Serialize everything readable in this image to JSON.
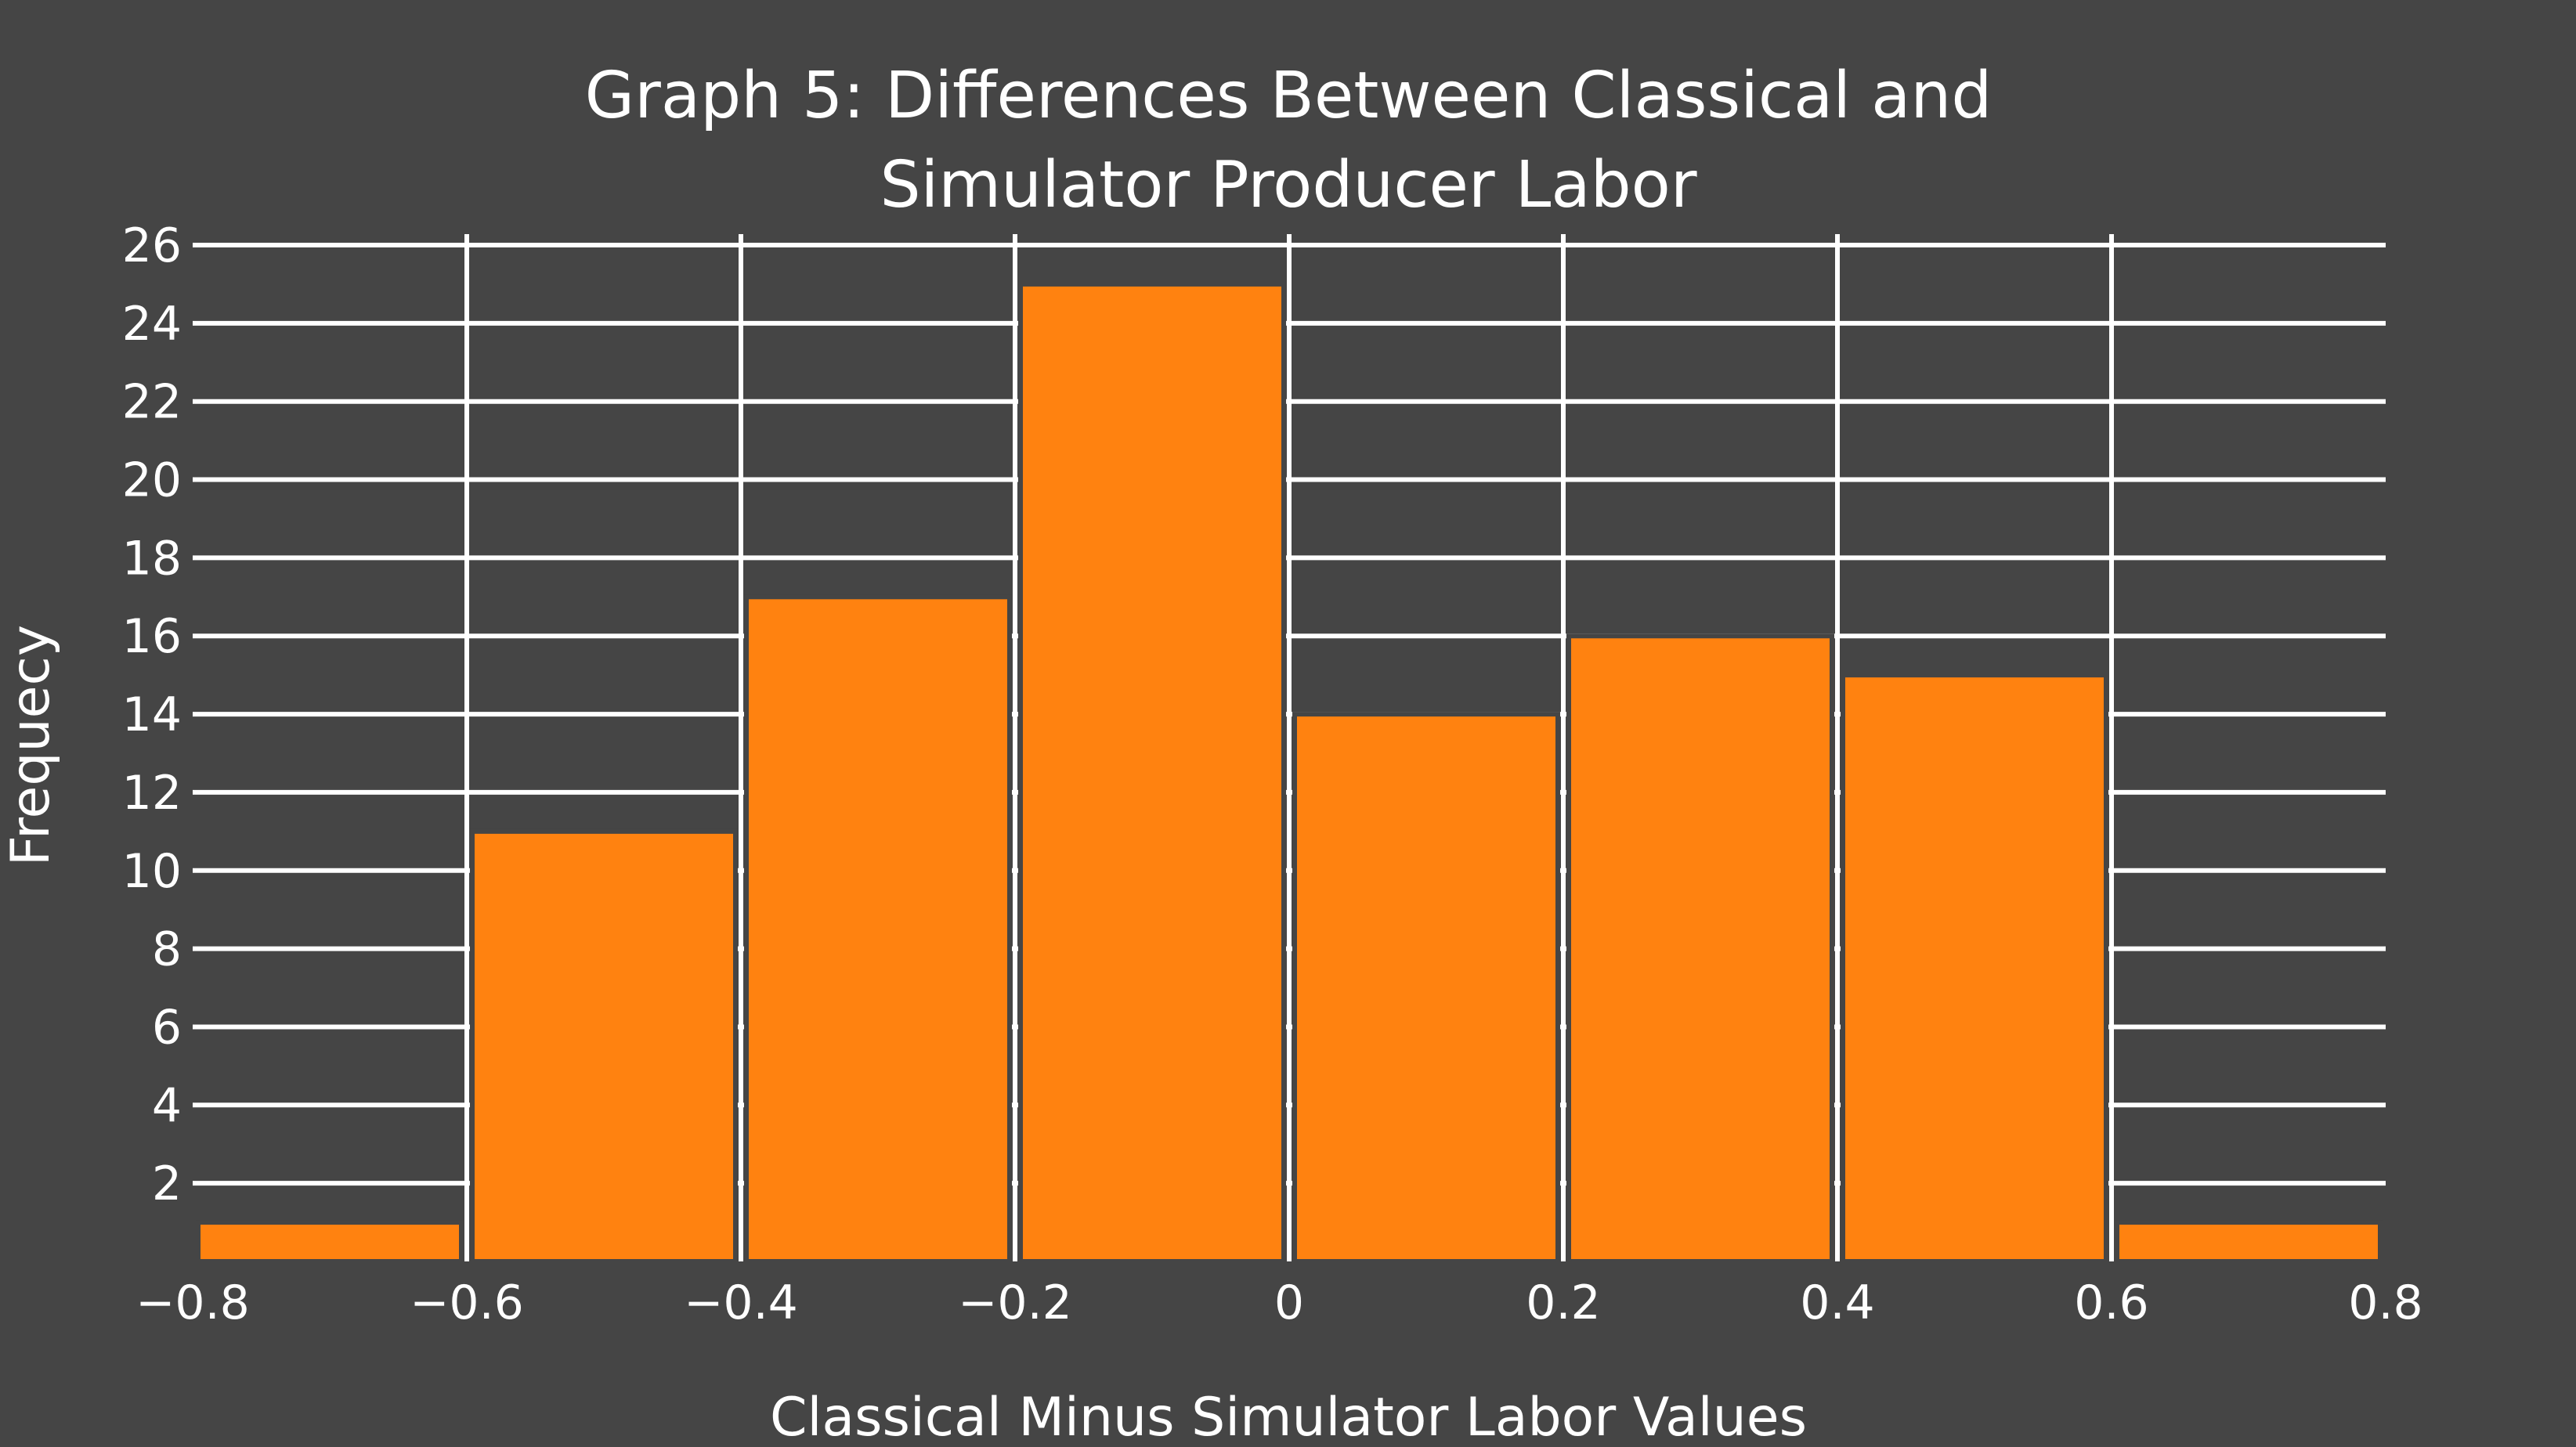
{
  "chart_data": {
    "type": "bar",
    "title_lines": [
      "Graph 5: Differences Between Classical and",
      "Simulator Producer Labor"
    ],
    "xlabel": "Classical Minus Simulator Labor Values",
    "ylabel": "Frequecy",
    "bin_edges": [
      -0.8,
      -0.6,
      -0.4,
      -0.2,
      0,
      0.2,
      0.4,
      0.6,
      0.8
    ],
    "values": [
      1,
      11,
      17,
      25,
      14,
      16,
      15,
      1
    ],
    "xlim": [
      -0.8,
      0.8
    ],
    "ylim": [
      0,
      26
    ],
    "xticks": [
      -0.8,
      -0.6,
      -0.4,
      -0.2,
      0,
      0.2,
      0.4,
      0.6,
      0.8
    ],
    "xtick_labels": [
      "−0.8",
      "−0.6",
      "−0.4",
      "−0.2",
      "0",
      "0.2",
      "0.4",
      "0.6",
      "0.8"
    ],
    "yticks": [
      2,
      4,
      6,
      8,
      10,
      12,
      14,
      16,
      18,
      20,
      22,
      24,
      26
    ],
    "ytick_labels": [
      "2",
      "4",
      "6",
      "8",
      "10",
      "12",
      "14",
      "16",
      "18",
      "20",
      "22",
      "24",
      "26"
    ],
    "grid": true,
    "legend": "none",
    "colors": {
      "background": "#454545",
      "bar": "#ff8210",
      "grid": "#ffffff",
      "text": "#ffffff"
    }
  }
}
